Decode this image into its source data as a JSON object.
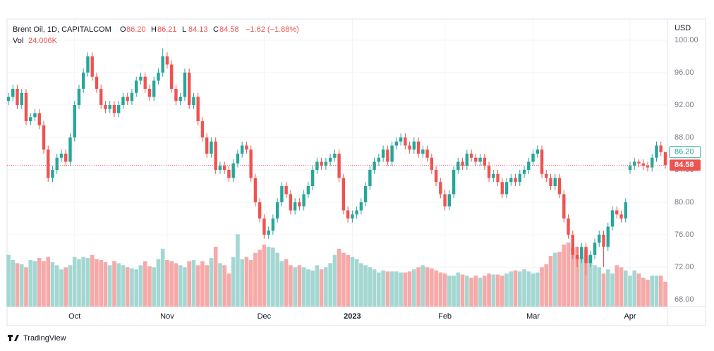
{
  "chart_data": {
    "type": "candlestick",
    "title": "Brent Oil, 1D, CAPITALCOM",
    "ohlc_header": [
      {
        "key": "O",
        "label": "86.20"
      },
      {
        "key": "H",
        "label": "86.21"
      },
      {
        "key": "L",
        "label": "84.13"
      },
      {
        "key": "C",
        "label": "84.58"
      }
    ],
    "change_label": "−1.62 (−1.88%)",
    "volume_title": "Vol",
    "volume_value_label": "24.006K",
    "currency": "USD",
    "brand": "TradingView",
    "up_color": "#26a69a",
    "down_color": "#ef5350",
    "volume_up_color": "#a5d7d2",
    "volume_down_color": "#f5aaa9",
    "ylim": [
      67.13,
      102.61
    ],
    "yticks": [
      {
        "value": 68,
        "label": "68.00"
      },
      {
        "value": 72,
        "label": "72.00"
      },
      {
        "value": 76,
        "label": "76.00"
      },
      {
        "value": 80,
        "label": "80.00"
      },
      {
        "value": 84,
        "label": "84.00"
      },
      {
        "value": 88,
        "label": "88.00"
      },
      {
        "value": 92,
        "label": "92.00"
      },
      {
        "value": 96,
        "label": "96.00"
      },
      {
        "value": 100,
        "label": "100.00"
      }
    ],
    "vlim": [
      0,
      75
    ],
    "grid": true,
    "price_markers": [
      {
        "value": 86.2,
        "label": "86.20",
        "style": "outline",
        "color": "#26a69a"
      },
      {
        "value": 84.58,
        "label": "84.58",
        "style": "filled",
        "color": "#ef5350"
      }
    ],
    "categories": [
      null,
      null,
      null,
      null,
      null,
      null,
      null,
      null,
      null,
      null,
      null,
      null,
      null,
      null,
      null,
      "Oct",
      null,
      null,
      null,
      null,
      null,
      null,
      null,
      null,
      null,
      null,
      null,
      null,
      null,
      null,
      null,
      null,
      null,
      null,
      null,
      null,
      "Nov",
      null,
      null,
      null,
      null,
      null,
      null,
      null,
      null,
      null,
      null,
      null,
      null,
      null,
      null,
      null,
      null,
      null,
      null,
      null,
      null,
      null,
      "Dec",
      null,
      null,
      null,
      null,
      null,
      null,
      null,
      null,
      null,
      null,
      null,
      null,
      null,
      null,
      null,
      null,
      null,
      null,
      null,
      "2023",
      null,
      null,
      null,
      null,
      null,
      null,
      null,
      null,
      null,
      null,
      null,
      null,
      null,
      null,
      null,
      null,
      null,
      null,
      null,
      null,
      "Feb",
      null,
      null,
      null,
      null,
      null,
      null,
      null,
      null,
      null,
      null,
      null,
      null,
      null,
      null,
      null,
      null,
      null,
      null,
      null,
      "Mar",
      null,
      null,
      null,
      null,
      null,
      null,
      null,
      null,
      null,
      null,
      null,
      null,
      null,
      null,
      null,
      null,
      null,
      null,
      null,
      null,
      null,
      "Apr",
      null,
      null,
      null,
      null,
      null,
      null,
      null,
      null
    ],
    "open": [
      92.5,
      93,
      94,
      92,
      93.5,
      90,
      90.5,
      91,
      89.5,
      86.5,
      83,
      84,
      85.5,
      86,
      85,
      88,
      92,
      94,
      96,
      98,
      95.5,
      94,
      92,
      91.5,
      92,
      91,
      92,
      93,
      92.5,
      93.5,
      95,
      95.5,
      94,
      93,
      95,
      96,
      98,
      97,
      94,
      92.5,
      93,
      96,
      92,
      93,
      90,
      88,
      86,
      87.5,
      84,
      84.5,
      84,
      83,
      84.8,
      86,
      87,
      86.5,
      83,
      80,
      78,
      76,
      76.5,
      78,
      80,
      82,
      81,
      79,
      80,
      79.5,
      81,
      82,
      84,
      85,
      84.5,
      85,
      85.5,
      86,
      83,
      79,
      78,
      78.5,
      79,
      80,
      82,
      84,
      85,
      85.5,
      86.5,
      85,
      87,
      87.5,
      88,
      87,
      86.5,
      87.5,
      86,
      86.5,
      85.5,
      84,
      82.5,
      81,
      79.5,
      81,
      84,
      85,
      84.5,
      86,
      85.5,
      85,
      85.5,
      84.5,
      83,
      83.5,
      82.5,
      81,
      82.5,
      83,
      82.5,
      83.5,
      84,
      85,
      86,
      86.5,
      83.5,
      83,
      82,
      83,
      81,
      78,
      76,
      73.5,
      73,
      74.5,
      72.5,
      73.5,
      75,
      76,
      74.5,
      77,
      79,
      78.5,
      78,
      84,
      84.5,
      85,
      84.8,
      84.5,
      84.3,
      85.5,
      87,
      86.2
    ],
    "high": [
      93.5,
      94.5,
      94.5,
      94,
      94,
      91,
      91.5,
      91.5,
      90,
      87,
      84.5,
      86,
      86.5,
      86.5,
      88.5,
      92.5,
      94.5,
      96.5,
      98.5,
      98.5,
      96,
      94.5,
      92.5,
      92.5,
      92.5,
      92.5,
      93.5,
      93.5,
      94,
      95.5,
      96,
      96,
      94.5,
      95.5,
      96.5,
      99,
      98.5,
      97.5,
      94.5,
      93.5,
      96.5,
      96.5,
      93.5,
      93.5,
      90.5,
      88.5,
      88,
      88,
      85,
      85,
      84.5,
      85.3,
      86.5,
      87.5,
      87.5,
      87,
      83.5,
      80.5,
      78.5,
      77,
      78.5,
      80.5,
      82.5,
      82.5,
      81.5,
      80.5,
      80.5,
      81.5,
      82.5,
      84.5,
      85.5,
      85.5,
      85.5,
      86,
      86.5,
      86.5,
      83.5,
      79.5,
      79,
      79.5,
      80.5,
      82.5,
      84.5,
      85.5,
      86,
      87,
      87,
      87.5,
      88,
      88.5,
      88.5,
      87.5,
      88,
      88,
      87,
      87,
      86,
      84.5,
      83,
      81.5,
      81.5,
      84.5,
      85.5,
      85.5,
      86.5,
      86.5,
      86,
      86,
      86,
      85,
      84,
      84,
      83,
      83,
      83.5,
      83.5,
      84,
      84.5,
      85.5,
      86.5,
      87,
      87,
      84,
      83.5,
      83.5,
      83.5,
      81.5,
      78.5,
      76.5,
      74.5,
      75,
      75,
      74,
      75.5,
      76.5,
      76.5,
      77.5,
      79.5,
      79.5,
      79,
      80.5,
      85,
      85.5,
      85.3,
      85.3,
      85,
      86,
      87.5,
      87.5,
      86.21
    ],
    "low": [
      92,
      92.5,
      91.5,
      91.5,
      89.5,
      89.5,
      90,
      89,
      86,
      82.5,
      82.5,
      83.5,
      85,
      84.5,
      84.5,
      87.5,
      91.5,
      93.5,
      95.5,
      95,
      93.5,
      91.5,
      91,
      91,
      90.5,
      90.5,
      91.5,
      92,
      92,
      93,
      94.5,
      93.5,
      92.5,
      92.5,
      94.5,
      95.5,
      96.5,
      93.5,
      92,
      92,
      92.5,
      91.5,
      91.5,
      89.5,
      87.5,
      85.5,
      85.5,
      83.5,
      83.5,
      83.5,
      82.5,
      82.5,
      84.3,
      85.5,
      86,
      82.5,
      79.5,
      77.5,
      75.5,
      75.5,
      76,
      77.5,
      79.5,
      80.5,
      78.5,
      78.5,
      79,
      79,
      80.5,
      81.5,
      83.5,
      84,
      84,
      84.5,
      85,
      82.5,
      78.5,
      77.5,
      77.5,
      78,
      78.5,
      79.5,
      81.5,
      83.5,
      84.5,
      85,
      84.5,
      84.5,
      86.5,
      87,
      86.5,
      86,
      86,
      85.5,
      85.5,
      85,
      83.5,
      82,
      80.5,
      79,
      79,
      80.5,
      83.5,
      84,
      84,
      85,
      84.5,
      84.5,
      84,
      82.5,
      82.5,
      82,
      80.5,
      80.5,
      82,
      82,
      82,
      83,
      83.5,
      84.5,
      85.5,
      83,
      82.5,
      81.5,
      81.5,
      80.5,
      77.5,
      75.5,
      73,
      72,
      72.5,
      71,
      72,
      73,
      74.5,
      72,
      74,
      76.5,
      78,
      77.5,
      77.5,
      83.5,
      84,
      84.3,
      84,
      83.8,
      83.8,
      85,
      85.7,
      84.13
    ],
    "close": [
      93,
      94,
      92,
      93.5,
      90,
      90.5,
      91,
      89.5,
      86.5,
      83,
      84,
      85.5,
      86,
      85,
      88,
      92,
      94,
      96,
      98,
      95.5,
      94,
      92,
      91.5,
      92,
      91,
      92,
      93,
      92.5,
      93.5,
      95,
      95.5,
      94,
      93,
      95,
      96,
      98,
      97,
      94,
      92.5,
      93,
      96,
      92,
      93,
      90,
      88,
      86,
      87.5,
      84,
      84.5,
      84,
      83,
      84.8,
      86,
      87,
      86.5,
      83,
      80,
      78,
      76,
      76.5,
      78,
      80,
      82,
      81,
      79,
      80,
      79.5,
      81,
      82,
      84,
      85,
      84.5,
      85,
      85.5,
      86,
      83,
      79,
      78,
      78.5,
      79,
      80,
      82,
      84,
      85,
      85.5,
      86.5,
      85,
      87,
      87.5,
      88,
      87,
      86.5,
      87.5,
      86,
      86.5,
      85.5,
      84,
      82.5,
      81,
      79.5,
      81,
      84,
      85,
      84.5,
      86,
      85.5,
      85,
      85.5,
      84.5,
      83,
      83.5,
      82.5,
      81,
      82.5,
      83,
      82.5,
      83.5,
      84,
      85,
      86,
      86.5,
      83.5,
      83,
      82,
      83,
      81,
      78,
      76,
      73.5,
      73,
      74.5,
      72.5,
      73.5,
      75,
      76,
      74.5,
      77,
      79,
      78.5,
      78,
      80,
      84.5,
      85,
      84.8,
      84.5,
      84.3,
      85.5,
      87,
      86.2,
      84.58
    ],
    "volume": [
      50,
      45,
      42,
      41,
      38,
      45,
      44,
      47,
      44,
      48,
      43,
      40,
      36,
      38,
      40,
      48,
      46,
      48,
      47,
      50,
      46,
      45,
      43,
      40,
      44,
      42,
      40,
      38,
      37,
      36,
      40,
      44,
      39,
      38,
      46,
      56,
      45,
      44,
      42,
      40,
      38,
      44,
      45,
      40,
      44,
      40,
      47,
      58,
      42,
      40,
      32,
      48,
      70,
      46,
      48,
      45,
      52,
      55,
      60,
      58,
      57,
      52,
      44,
      46,
      40,
      38,
      40,
      38,
      36,
      35,
      40,
      36,
      38,
      42,
      50,
      56,
      52,
      50,
      48,
      46,
      42,
      40,
      38,
      36,
      33,
      35,
      34,
      34,
      34,
      33,
      33,
      34,
      36,
      38,
      40,
      38,
      37,
      35,
      33,
      32,
      30,
      30,
      33,
      31,
      30,
      28,
      30,
      28,
      30,
      32,
      31,
      31,
      30,
      32,
      34,
      35,
      34,
      36,
      34,
      32,
      33,
      38,
      41,
      49,
      52,
      53,
      60,
      62,
      57,
      58,
      48,
      55,
      50,
      40,
      38,
      32,
      36,
      32,
      40,
      38,
      35,
      30,
      35,
      32,
      28,
      26,
      30,
      30,
      30,
      24.006
    ]
  }
}
